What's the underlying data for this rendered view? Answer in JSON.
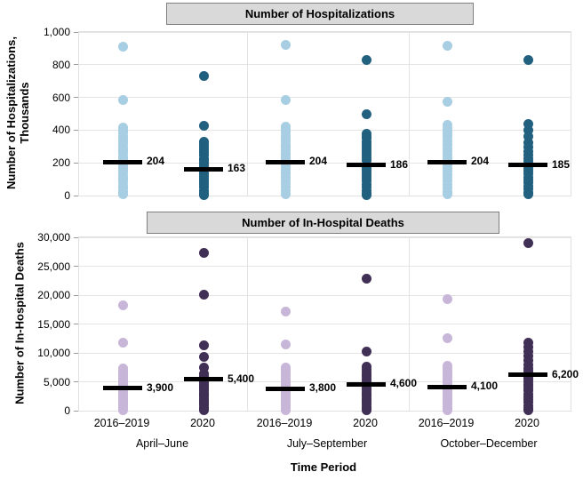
{
  "chart_data": [
    {
      "type": "scatter",
      "title": "Number of Hospitalizations",
      "ylabel": [
        "Number of Hospitalizations,",
        "Thousands"
      ],
      "ylim": [
        0,
        1000
      ],
      "ytick_values": [
        0,
        200,
        400,
        600,
        800,
        1000
      ],
      "ytick_labels": [
        "0",
        "200",
        "400",
        "600",
        "800",
        "1,000"
      ],
      "grid": true,
      "colors": [
        "#a7cee2",
        "#21607f"
      ],
      "groups": [
        {
          "period": "April–June",
          "strips": [
            {
              "cohort": "2016–2019",
              "median": 204,
              "median_label": "204",
              "values": [
                910,
                585,
                415,
                400,
                382,
                364,
                346,
                328,
                310,
                292,
                274,
                256,
                238,
                221,
                204,
                188,
                171,
                154,
                137,
                119,
                101,
                83,
                64,
                45,
                25,
                8
              ]
            },
            {
              "cohort": "2020",
              "median": 163,
              "median_label": "163",
              "values": [
                730,
                425,
                330,
                313,
                296,
                279,
                262,
                245,
                228,
                212,
                196,
                180,
                163,
                147,
                131,
                115,
                99,
                83,
                66,
                49,
                32,
                16,
                5
              ]
            }
          ]
        },
        {
          "period": "July–September",
          "strips": [
            {
              "cohort": "2016–2019",
              "median": 204,
              "median_label": "204",
              "values": [
                920,
                585,
                420,
                403,
                386,
                368,
                350,
                332,
                314,
                296,
                278,
                260,
                242,
                223,
                204,
                186,
                168,
                150,
                131,
                112,
                93,
                73,
                52,
                30,
                10
              ]
            },
            {
              "cohort": "2020",
              "median": 186,
              "median_label": "186",
              "values": [
                830,
                495,
                380,
                364,
                348,
                331,
                314,
                297,
                280,
                263,
                246,
                229,
                212,
                186,
                170,
                154,
                138,
                121,
                104,
                87,
                69,
                51,
                32,
                14,
                4
              ]
            }
          ]
        },
        {
          "period": "October–December",
          "strips": [
            {
              "cohort": "2016–2019",
              "median": 204,
              "median_label": "204",
              "values": [
                915,
                575,
                430,
                413,
                395,
                377,
                359,
                341,
                323,
                305,
                287,
                269,
                250,
                228,
                204,
                186,
                168,
                149,
                130,
                110,
                90,
                69,
                47,
                25,
                8
              ]
            },
            {
              "cohort": "2020",
              "median": 185,
              "median_label": "185",
              "values": [
                830,
                440,
                400,
                360,
                322,
                295,
                270,
                248,
                227,
                207,
                185,
                167,
                149,
                131,
                113,
                95,
                77,
                58,
                39,
                20,
                6
              ]
            }
          ]
        }
      ]
    },
    {
      "type": "scatter",
      "title": "Number of In-Hospital Deaths",
      "ylabel": [
        "Number of In-Hospital Deaths"
      ],
      "ylim": [
        0,
        30000
      ],
      "ytick_values": [
        0,
        5000,
        10000,
        15000,
        20000,
        25000,
        30000
      ],
      "ytick_labels": [
        "0",
        "5,000",
        "10,000",
        "15,000",
        "20,000",
        "25,000",
        "30,000"
      ],
      "grid": true,
      "colors": [
        "#c8b6d9",
        "#413055"
      ],
      "groups": [
        {
          "period": "April–June",
          "strips": [
            {
              "cohort": "2016–2019",
              "median": 3900,
              "median_label": "3,900",
              "values": [
                18300,
                11800,
                7300,
                6900,
                6500,
                6100,
                5750,
                5400,
                5050,
                4700,
                4350,
                4000,
                3900,
                3550,
                3200,
                2850,
                2500,
                2150,
                1800,
                1450,
                1100,
                750,
                400,
                150
              ]
            },
            {
              "cohort": "2020",
              "median": 5400,
              "median_label": "5,400",
              "values": [
                27300,
                20100,
                11300,
                9300,
                7500,
                6400,
                6000,
                5700,
                5400,
                5100,
                4800,
                4450,
                4100,
                3750,
                3400,
                3050,
                2700,
                2350,
                2000,
                1650,
                1300,
                950,
                600,
                250,
                80
              ]
            }
          ]
        },
        {
          "period": "July–September",
          "strips": [
            {
              "cohort": "2016–2019",
              "median": 3800,
              "median_label": "3,800",
              "values": [
                17200,
                11500,
                7500,
                7100,
                6700,
                6300,
                5900,
                5500,
                5150,
                4800,
                4450,
                4100,
                3800,
                3450,
                3100,
                2750,
                2400,
                2050,
                1700,
                1350,
                1000,
                650,
                300,
                100
              ]
            },
            {
              "cohort": "2020",
              "median": 4600,
              "median_label": "4,600",
              "values": [
                22800,
                10200,
                7600,
                7150,
                6700,
                6250,
                5850,
                5450,
                5050,
                4700,
                4600,
                4250,
                3900,
                3550,
                3200,
                2850,
                2500,
                2150,
                1800,
                1450,
                1100,
                750,
                400,
                120
              ]
            }
          ]
        },
        {
          "period": "October–December",
          "strips": [
            {
              "cohort": "2016–2019",
              "median": 4100,
              "median_label": "4,100",
              "values": [
                19300,
                12500,
                7800,
                7350,
                6900,
                6500,
                6100,
                5700,
                5300,
                4950,
                4600,
                4250,
                4100,
                3750,
                3400,
                3050,
                2700,
                2350,
                2000,
                1650,
                1300,
                950,
                600,
                250,
                80
              ]
            },
            {
              "cohort": "2020",
              "median": 6200,
              "median_label": "6,200",
              "values": [
                29000,
                11800,
                11000,
                10200,
                9400,
                8700,
                8000,
                7300,
                6800,
                6400,
                6200,
                5800,
                5400,
                5000,
                4600,
                4200,
                3800,
                3400,
                2900,
                2400,
                1900,
                1400,
                900,
                450,
                120
              ]
            }
          ]
        }
      ]
    }
  ],
  "xaxis": {
    "title": "Time Period",
    "cohort_labels": [
      "2016–2019",
      "2020"
    ],
    "period_labels": [
      "April–June",
      "July–September",
      "October–December"
    ]
  },
  "style": {
    "title_box_bg": "#d9d9d9",
    "title_box_border": "#7f7f7f",
    "gridline_color": "#e4e4e4",
    "median_color": "#000000"
  }
}
